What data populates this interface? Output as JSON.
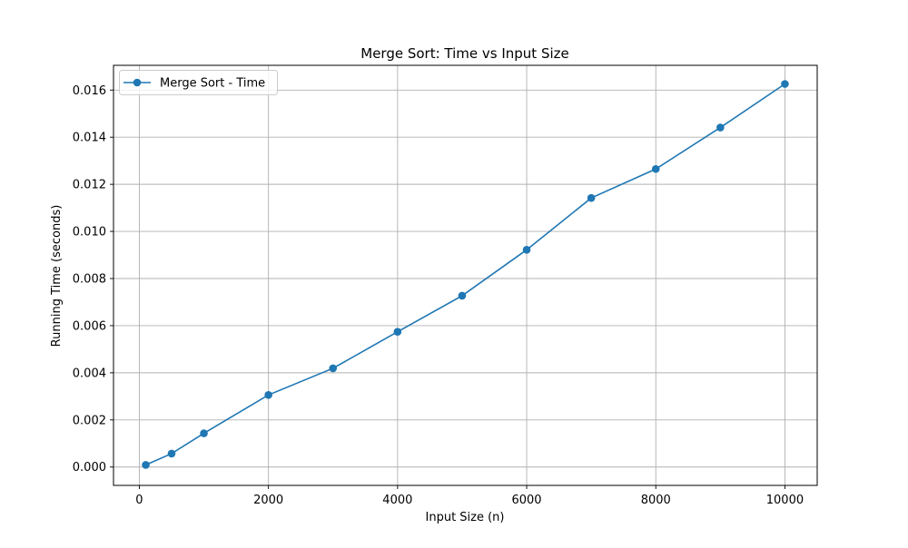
{
  "chart_data": {
    "type": "line",
    "title": "Merge Sort: Time vs Input Size",
    "xlabel": "Input Size (n)",
    "ylabel": "Running Time (seconds)",
    "xlim": [
      -400,
      10500
    ],
    "ylim": [
      -0.00078,
      0.01705
    ],
    "x_ticks": [
      0,
      2000,
      4000,
      6000,
      8000,
      10000
    ],
    "y_ticks": [
      0.0,
      0.002,
      0.004,
      0.006,
      0.008,
      0.01,
      0.012,
      0.014,
      0.016
    ],
    "x_tick_labels": [
      "0",
      "2000",
      "4000",
      "6000",
      "8000",
      "10000"
    ],
    "y_tick_labels": [
      "0.000",
      "0.002",
      "0.004",
      "0.006",
      "0.008",
      "0.010",
      "0.012",
      "0.014",
      "0.016"
    ],
    "grid": true,
    "legend_position": "upper-left",
    "series": [
      {
        "name": "Merge Sort - Time",
        "color": "#1f77b4",
        "marker": "circle",
        "x": [
          100,
          500,
          1000,
          2000,
          3000,
          4000,
          5000,
          6000,
          7000,
          8000,
          9000,
          10000
        ],
        "y": [
          9e-05,
          0.00057,
          0.00143,
          0.00306,
          0.00419,
          0.00574,
          0.00727,
          0.00922,
          0.01142,
          0.01265,
          0.01441,
          0.01626
        ]
      }
    ]
  }
}
